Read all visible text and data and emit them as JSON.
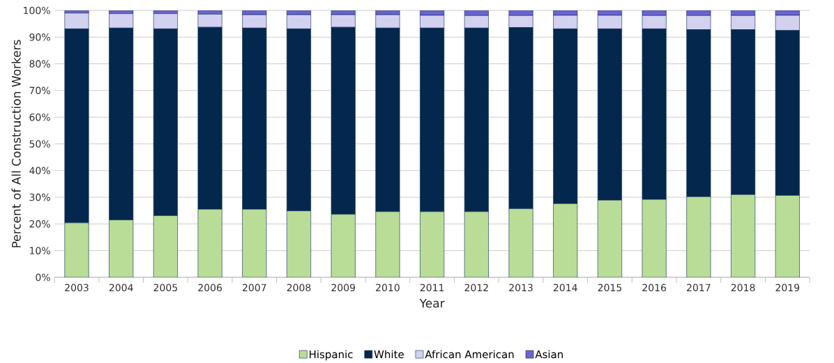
{
  "chart_data": {
    "type": "bar",
    "stacked": true,
    "xlabel": "Year",
    "ylabel": "Percent of All Construction Workers",
    "categories": [
      "2003",
      "2004",
      "2005",
      "2006",
      "2007",
      "2008",
      "2009",
      "2010",
      "2011",
      "2012",
      "2013",
      "2014",
      "2015",
      "2016",
      "2017",
      "2018",
      "2019"
    ],
    "series": [
      {
        "name": "Hispanic",
        "color": "#b9dd97",
        "values": [
          20.4,
          21.5,
          23.1,
          25.5,
          25.5,
          24.9,
          23.6,
          24.6,
          24.6,
          24.6,
          25.7,
          27.6,
          28.9,
          29.2,
          30.2,
          31.0,
          30.7
        ]
      },
      {
        "name": "White",
        "color": "#04284d",
        "values": [
          72.7,
          71.9,
          70.0,
          68.2,
          67.9,
          68.2,
          70.1,
          68.8,
          68.8,
          68.8,
          67.9,
          65.5,
          64.2,
          63.9,
          62.6,
          61.8,
          61.8
        ]
      },
      {
        "name": "African American",
        "color": "#d3d1f0",
        "values": [
          5.9,
          5.4,
          5.7,
          4.9,
          5.0,
          5.3,
          4.7,
          5.0,
          4.8,
          4.7,
          4.5,
          5.1,
          5.1,
          5.0,
          5.3,
          5.3,
          5.7
        ]
      },
      {
        "name": "Asian",
        "color": "#6c63d1",
        "values": [
          1.0,
          1.2,
          1.2,
          1.4,
          1.6,
          1.6,
          1.6,
          1.6,
          1.8,
          1.9,
          1.9,
          1.8,
          1.8,
          1.9,
          1.9,
          1.9,
          1.8
        ]
      }
    ],
    "ylim": [
      0,
      100
    ],
    "yticks": [
      {
        "value": 0,
        "label": "0%"
      },
      {
        "value": 10,
        "label": "10%"
      },
      {
        "value": 20,
        "label": "20%"
      },
      {
        "value": 30,
        "label": "30%"
      },
      {
        "value": 40,
        "label": "40%"
      },
      {
        "value": 50,
        "label": "50%"
      },
      {
        "value": 60,
        "label": "60%"
      },
      {
        "value": 70,
        "label": "70%"
      },
      {
        "value": 80,
        "label": "80%"
      },
      {
        "value": 90,
        "label": "90%"
      },
      {
        "value": 100,
        "label": "100%"
      }
    ],
    "grid": "y",
    "legend": "bottom"
  }
}
